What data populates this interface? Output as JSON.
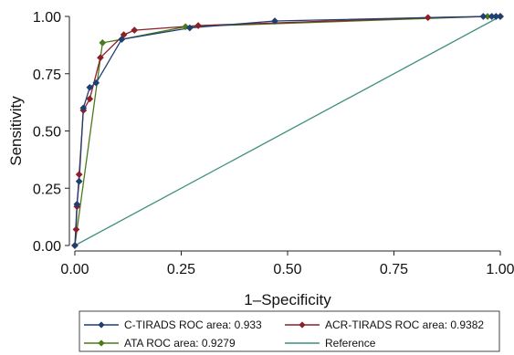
{
  "chart_data": {
    "type": "line",
    "title": "",
    "xlabel": "1–Specificity",
    "ylabel": "Sensitivity",
    "xlim": [
      0,
      1
    ],
    "ylim": [
      0,
      1
    ],
    "xticks": [
      0,
      0.25,
      0.5,
      0.75,
      1
    ],
    "yticks": [
      0,
      0.25,
      0.5,
      0.75,
      1
    ],
    "xtick_labels": [
      "0.00",
      "0.25",
      "0.50",
      "0.75",
      "1.00"
    ],
    "ytick_labels": [
      "0.00",
      "0.25",
      "0.50",
      "0.75",
      "1.00"
    ],
    "grid": false,
    "legend_position": "bottom",
    "series": [
      {
        "name": "C-TIRADS ROC area: 0.933",
        "color": "#1f3f73",
        "marker": "diamond",
        "points": [
          [
            0,
            0
          ],
          [
            0.005,
            0.18
          ],
          [
            0.01,
            0.28
          ],
          [
            0.02,
            0.6
          ],
          [
            0.035,
            0.69
          ],
          [
            0.05,
            0.71
          ],
          [
            0.11,
            0.9
          ],
          [
            0.27,
            0.95
          ],
          [
            0.47,
            0.98
          ],
          [
            0.96,
            1
          ],
          [
            0.98,
            1
          ],
          [
            0.99,
            1
          ],
          [
            1,
            1
          ]
        ]
      },
      {
        "name": "ACR-TIRADS ROC area: 0.9382",
        "color": "#8c1f2a",
        "marker": "diamond",
        "points": [
          [
            0,
            0
          ],
          [
            0.003,
            0.07
          ],
          [
            0.005,
            0.17
          ],
          [
            0.01,
            0.31
          ],
          [
            0.02,
            0.59
          ],
          [
            0.035,
            0.64
          ],
          [
            0.06,
            0.82
          ],
          [
            0.115,
            0.92
          ],
          [
            0.14,
            0.94
          ],
          [
            0.29,
            0.96
          ],
          [
            0.83,
            0.995
          ],
          [
            1,
            1
          ]
        ]
      },
      {
        "name": "ATA ROC area: 0.9279",
        "color": "#4b7a1a",
        "marker": "diamond",
        "points": [
          [
            0,
            0
          ],
          [
            0.065,
            0.885
          ],
          [
            0.11,
            0.9
          ],
          [
            0.26,
            0.955
          ],
          [
            0.97,
            1
          ],
          [
            0.99,
            1
          ],
          [
            1,
            1
          ]
        ]
      },
      {
        "name": "Reference",
        "color": "#3f8f7f",
        "marker": "none",
        "points": [
          [
            0,
            0
          ],
          [
            1,
            1
          ]
        ]
      }
    ]
  }
}
